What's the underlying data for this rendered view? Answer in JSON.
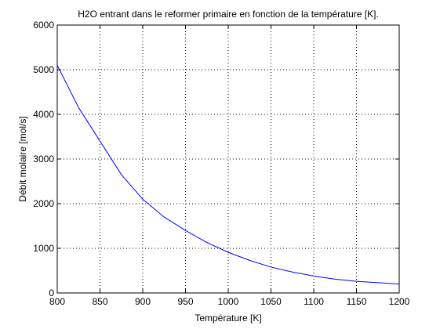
{
  "chart_data": {
    "type": "line",
    "title": "H2O entrant dans le reformer primaire en fonction de la température [K].",
    "xlabel": "Température [K]",
    "ylabel": "Débit molaire [mol/s]",
    "xlim": [
      800,
      1200
    ],
    "ylim": [
      0,
      6000
    ],
    "xticks": [
      800,
      850,
      900,
      950,
      1000,
      1050,
      1100,
      1150,
      1200
    ],
    "yticks": [
      0,
      1000,
      2000,
      3000,
      4000,
      5000,
      6000
    ],
    "grid": true,
    "series": [
      {
        "color": "#0000ff",
        "x": [
          800,
          825,
          850,
          875,
          900,
          925,
          950,
          975,
          1000,
          1025,
          1050,
          1075,
          1100,
          1125,
          1150,
          1175,
          1200
        ],
        "y": [
          5100,
          4150,
          3400,
          2650,
          2100,
          1700,
          1400,
          1130,
          910,
          730,
          580,
          470,
          380,
          310,
          260,
          230,
          200
        ]
      }
    ]
  }
}
